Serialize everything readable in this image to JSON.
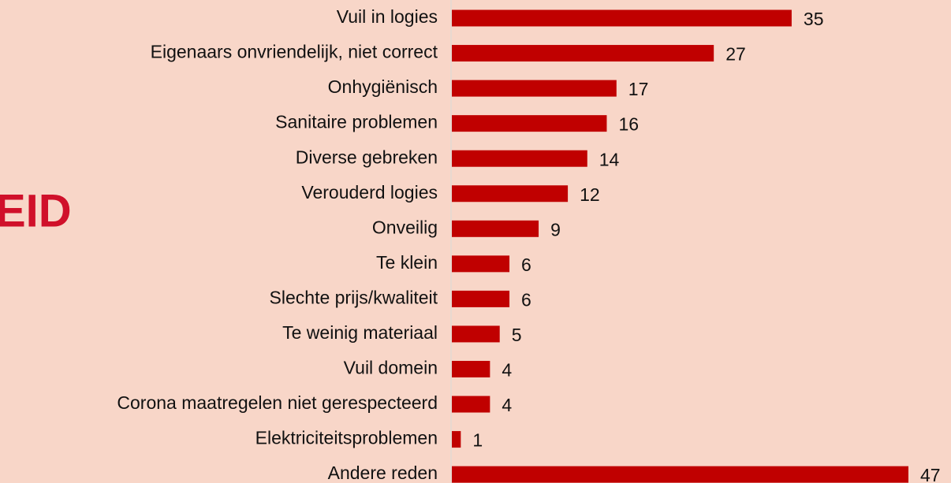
{
  "chart_data": {
    "type": "bar",
    "orientation": "horizontal",
    "annotation": "EID",
    "categories": [
      "Vuil in logies",
      "Eigenaars onvriendelijk, niet correct",
      "Onhygiënisch",
      "Sanitaire problemen",
      "Diverse gebreken",
      "Verouderd logies",
      "Onveilig",
      "Te klein",
      "Slechte prijs/kwaliteit",
      "Te weinig materiaal",
      "Vuil domein",
      "Corona maatregelen niet gerespecteerd",
      "Elektriciteitsproblemen",
      "Andere reden"
    ],
    "values": [
      35,
      27,
      17,
      16,
      14,
      12,
      9,
      6,
      6,
      5,
      4,
      4,
      1,
      47
    ],
    "color": "#c00000"
  }
}
